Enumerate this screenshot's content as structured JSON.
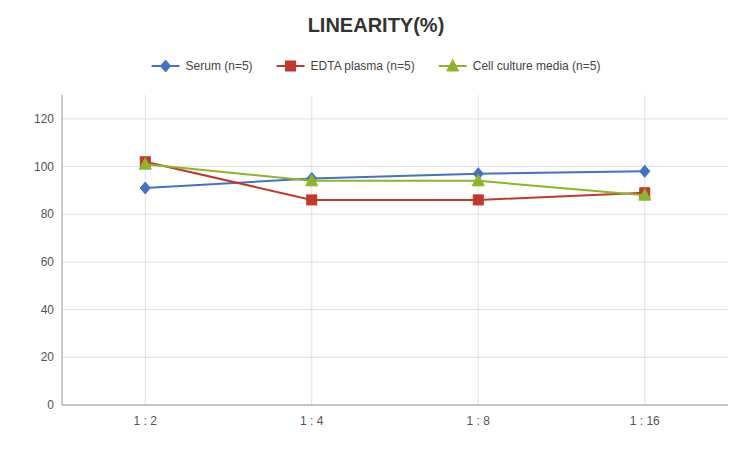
{
  "chart_data": {
    "type": "line",
    "title": "LINEARITY(%)",
    "categories": [
      "1 : 2",
      "1 : 4",
      "1 : 8",
      "1 : 16"
    ],
    "series": [
      {
        "name": "Serum (n=5)",
        "color": "#4472C4",
        "marker": "diamond",
        "line_style": "solid",
        "values": [
          91,
          95,
          97,
          98
        ]
      },
      {
        "name": "EDTA plasma (n=5)",
        "color": "#C0392B",
        "marker": "square",
        "line_style": "solid",
        "values": [
          102,
          86,
          86,
          89
        ]
      },
      {
        "name": "Cell culture media (n=5)",
        "color": "#8DB52B",
        "marker": "triangle",
        "line_style": "solid",
        "values": [
          101,
          94,
          94,
          88
        ]
      }
    ],
    "ylim": [
      0,
      130
    ],
    "yticks": [
      0,
      20,
      40,
      60,
      80,
      100,
      120
    ],
    "grid": true,
    "legend": "top"
  }
}
